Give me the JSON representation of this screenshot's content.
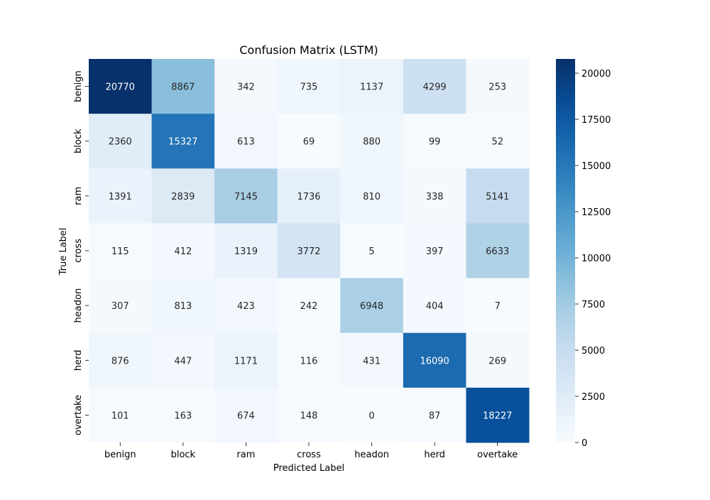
{
  "chart_data": {
    "type": "heatmap",
    "title": "Confusion Matrix (LSTM)",
    "xlabel": "Predicted Label",
    "ylabel": "True Label",
    "x_categories": [
      "benign",
      "block",
      "ram",
      "cross",
      "headon",
      "herd",
      "overtake"
    ],
    "y_categories": [
      "benign",
      "block",
      "ram",
      "cross",
      "headon",
      "herd",
      "overtake"
    ],
    "values": [
      [
        20770,
        8867,
        342,
        735,
        1137,
        4299,
        253
      ],
      [
        2360,
        15327,
        613,
        69,
        880,
        99,
        52
      ],
      [
        1391,
        2839,
        7145,
        1736,
        810,
        338,
        5141
      ],
      [
        115,
        412,
        1319,
        3772,
        5,
        397,
        6633
      ],
      [
        307,
        813,
        423,
        242,
        6948,
        404,
        7
      ],
      [
        876,
        447,
        1171,
        116,
        431,
        16090,
        269
      ],
      [
        101,
        163,
        674,
        148,
        0,
        87,
        18227
      ]
    ],
    "colorbar": {
      "min": 0,
      "max": 20770,
      "ticks": [
        0,
        2500,
        5000,
        7500,
        10000,
        12500,
        15000,
        17500,
        20000
      ],
      "colormap": "Blues"
    },
    "grid": false
  }
}
